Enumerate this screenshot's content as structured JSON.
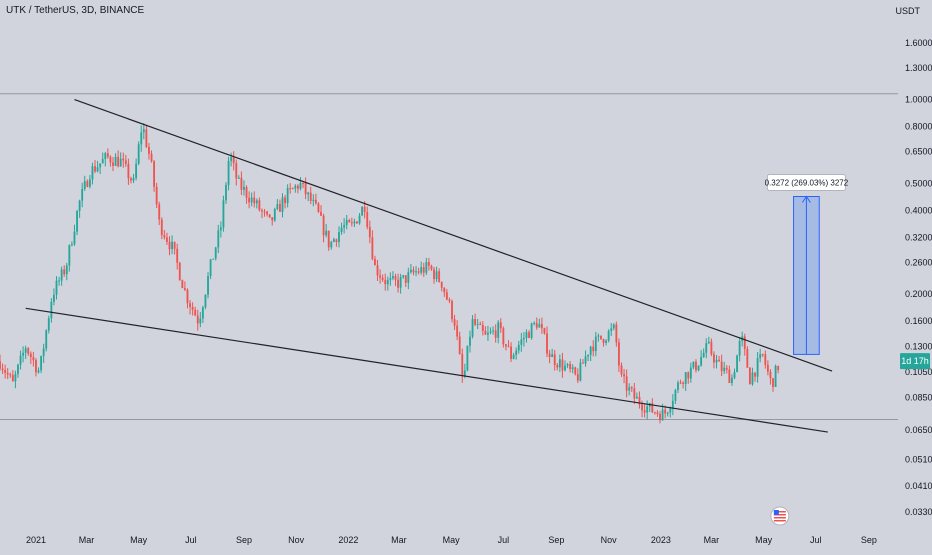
{
  "header": {
    "title": "UTK / TetherUS, 3D, BINANCE",
    "currency": "USDT"
  },
  "colors": {
    "background": "#d1d4dc",
    "bull": "#26a69a",
    "bear": "#ef5350",
    "trendline": "#1f2329",
    "measure_fill": "#8faee8",
    "measure_border": "#2962ff",
    "price_badge": "#26a69a",
    "reference_line": "#9598a1"
  },
  "chart_data": {
    "type": "candlestick",
    "y_scale": "log",
    "ylim": [
      0.028,
      1.9
    ],
    "y_ticks": [
      "1.6000",
      "1.3000",
      "1.0000",
      "0.8000",
      "0.6500",
      "0.5000",
      "0.4000",
      "0.3200",
      "0.2600",
      "0.2000",
      "0.1600",
      "0.1300",
      "0.1050",
      "0.0850",
      "0.0650",
      "0.0510",
      "0.0410",
      "0.0330"
    ],
    "y_tick_values": [
      1.6,
      1.3,
      1.0,
      0.8,
      0.65,
      0.5,
      0.4,
      0.32,
      0.26,
      0.2,
      0.16,
      0.13,
      0.105,
      0.085,
      0.065,
      0.051,
      0.041,
      0.033
    ],
    "x_labels": [
      "2021",
      "Mar",
      "May",
      "Jul",
      "Sep",
      "Nov",
      "2022",
      "Mar",
      "May",
      "Jul",
      "Sep",
      "Nov",
      "2023",
      "Mar",
      "May",
      "Jul",
      "Sep"
    ],
    "x_label_dates": [
      "2021-01-01",
      "2021-03-01",
      "2021-05-01",
      "2021-07-01",
      "2021-09-01",
      "2021-11-01",
      "2022-01-01",
      "2022-03-01",
      "2022-05-01",
      "2022-07-01",
      "2022-09-01",
      "2022-11-01",
      "2023-01-01",
      "2023-03-01",
      "2023-05-01",
      "2023-07-01",
      "2023-09-01"
    ],
    "xlim": [
      "2020-11-20",
      "2023-10-05"
    ],
    "price_path": [
      [
        "2020-11-20",
        0.115
      ],
      [
        "2020-12-05",
        0.095
      ],
      [
        "2020-12-20",
        0.13
      ],
      [
        "2021-01-05",
        0.105
      ],
      [
        "2021-01-20",
        0.2
      ],
      [
        "2021-02-05",
        0.25
      ],
      [
        "2021-02-20",
        0.42
      ],
      [
        "2021-03-05",
        0.55
      ],
      [
        "2021-03-25",
        0.62
      ],
      [
        "2021-04-10",
        0.6
      ],
      [
        "2021-04-25",
        0.5
      ],
      [
        "2021-05-05",
        0.82
      ],
      [
        "2021-05-15",
        0.6
      ],
      [
        "2021-05-25",
        0.36
      ],
      [
        "2021-06-10",
        0.29
      ],
      [
        "2021-06-25",
        0.2
      ],
      [
        "2021-07-10",
        0.16
      ],
      [
        "2021-07-25",
        0.26
      ],
      [
        "2021-08-05",
        0.35
      ],
      [
        "2021-08-15",
        0.64
      ],
      [
        "2021-08-25",
        0.5
      ],
      [
        "2021-09-15",
        0.42
      ],
      [
        "2021-10-01",
        0.36
      ],
      [
        "2021-10-20",
        0.45
      ],
      [
        "2021-11-05",
        0.5
      ],
      [
        "2021-11-25",
        0.4
      ],
      [
        "2021-12-10",
        0.3
      ],
      [
        "2021-12-25",
        0.35
      ],
      [
        "2022-01-05",
        0.35
      ],
      [
        "2022-01-20",
        0.42
      ],
      [
        "2022-02-01",
        0.25
      ],
      [
        "2022-02-15",
        0.22
      ],
      [
        "2022-03-01",
        0.22
      ],
      [
        "2022-03-20",
        0.24
      ],
      [
        "2022-04-05",
        0.25
      ],
      [
        "2022-04-20",
        0.22
      ],
      [
        "2022-05-05",
        0.16
      ],
      [
        "2022-05-15",
        0.095
      ],
      [
        "2022-05-25",
        0.16
      ],
      [
        "2022-06-10",
        0.14
      ],
      [
        "2022-06-25",
        0.15
      ],
      [
        "2022-07-10",
        0.12
      ],
      [
        "2022-07-25",
        0.14
      ],
      [
        "2022-08-10",
        0.16
      ],
      [
        "2022-08-25",
        0.12
      ],
      [
        "2022-09-10",
        0.11
      ],
      [
        "2022-09-25",
        0.1
      ],
      [
        "2022-10-10",
        0.13
      ],
      [
        "2022-10-25",
        0.14
      ],
      [
        "2022-11-08",
        0.15
      ],
      [
        "2022-11-15",
        0.1
      ],
      [
        "2022-12-01",
        0.085
      ],
      [
        "2022-12-20",
        0.077
      ],
      [
        "2023-01-05",
        0.074
      ],
      [
        "2023-01-25",
        0.1
      ],
      [
        "2023-02-10",
        0.11
      ],
      [
        "2023-02-25",
        0.13
      ],
      [
        "2023-03-10",
        0.11
      ],
      [
        "2023-03-25",
        0.1
      ],
      [
        "2023-04-05",
        0.14
      ],
      [
        "2023-04-15",
        0.1
      ],
      [
        "2023-04-30",
        0.12
      ],
      [
        "2023-05-10",
        0.095
      ],
      [
        "2023-05-20",
        0.115
      ]
    ],
    "trendlines": [
      {
        "name": "resistance",
        "from": {
          "date": "2021-02-15",
          "price": 1.0
        },
        "to": {
          "date": "2023-07-20",
          "price": 0.106
        }
      },
      {
        "name": "support",
        "from": {
          "date": "2020-12-20",
          "price": 0.178
        },
        "to": {
          "date": "2023-07-15",
          "price": 0.064
        }
      }
    ],
    "reference_lines": [
      1.05,
      0.071
    ],
    "measurement": {
      "label": "0.3272 (269.03%) 3272",
      "start_date": "2023-06-05",
      "end_date": "2023-07-05",
      "from_price": 0.1216,
      "to_price": 0.4488
    },
    "last_price_badge": {
      "label": "1d 17h",
      "price": 0.115
    }
  }
}
